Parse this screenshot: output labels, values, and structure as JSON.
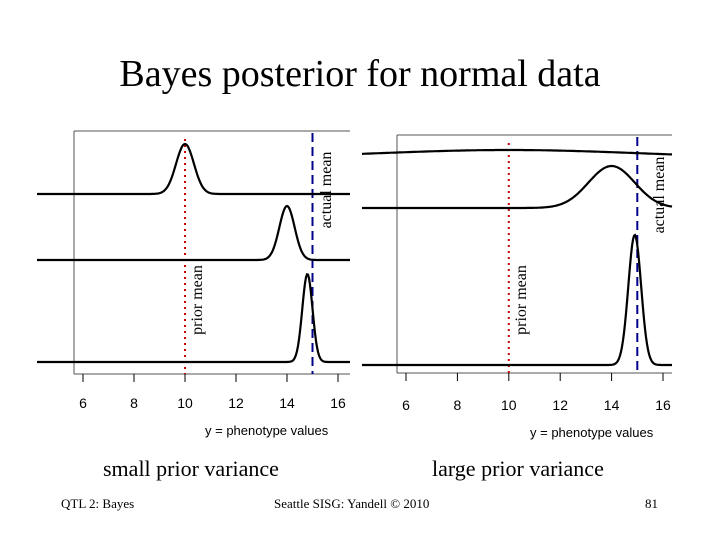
{
  "slide": {
    "title": "Bayes posterior for normal data",
    "footer_left": "QTL 2: Bayes",
    "footer_center": "Seattle SISG: Yandell © 2010",
    "page_number": "81"
  },
  "chart_data": [
    {
      "type": "line",
      "caption": "small prior variance",
      "xlabel": "y = phenotype values",
      "x_ticks": [
        6,
        8,
        10,
        12,
        14,
        16
      ],
      "xlim": [
        5.2,
        16.4
      ],
      "prior_mean": 10,
      "prior_mean_label": "prior mean",
      "actual_mean": 15,
      "actual_mean_label": "actual mean",
      "line_colors": {
        "prior_mean": "#cc0000",
        "actual_mean": "#00008b"
      },
      "series": [
        {
          "center": 10,
          "sd": 0.35
        },
        {
          "center": 14,
          "sd": 0.3
        },
        {
          "center": 14.8,
          "sd": 0.2
        }
      ]
    },
    {
      "type": "line",
      "caption": "large prior variance",
      "xlabel": "y = phenotype values",
      "x_ticks": [
        6,
        8,
        10,
        12,
        14,
        16
      ],
      "xlim": [
        5.2,
        16.4
      ],
      "prior_mean": 10,
      "prior_mean_label": "prior mean",
      "actual_mean": 15,
      "actual_mean_label": "actual mean",
      "line_colors": {
        "prior_mean": "#cc0000",
        "actual_mean": "#00008b"
      },
      "series": [
        {
          "center": 10,
          "sd": 5,
          "flat": true
        },
        {
          "center": 14,
          "sd": 0.9
        },
        {
          "center": 14.9,
          "sd": 0.25
        }
      ]
    }
  ]
}
